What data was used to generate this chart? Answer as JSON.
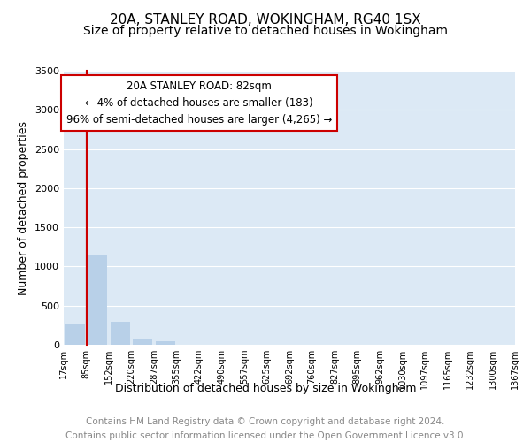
{
  "title1": "20A, STANLEY ROAD, WOKINGHAM, RG40 1SX",
  "title2": "Size of property relative to detached houses in Wokingham",
  "xlabel": "Distribution of detached houses by size in Wokingham",
  "ylabel": "Number of detached properties",
  "footnote1": "Contains HM Land Registry data © Crown copyright and database right 2024.",
  "footnote2": "Contains public sector information licensed under the Open Government Licence v3.0.",
  "annotation_title": "20A STANLEY ROAD: 82sqm",
  "annotation_line1": "← 4% of detached houses are smaller (183)",
  "annotation_line2": "96% of semi-detached houses are larger (4,265) →",
  "bar_values": [
    270,
    1150,
    290,
    80,
    50,
    0,
    0,
    0,
    0,
    0,
    0,
    0,
    0,
    0,
    0,
    0,
    0,
    0,
    0,
    0
  ],
  "categories": [
    "17sqm",
    "85sqm",
    "152sqm",
    "220sqm",
    "287sqm",
    "355sqm",
    "422sqm",
    "490sqm",
    "557sqm",
    "625sqm",
    "692sqm",
    "760sqm",
    "827sqm",
    "895sqm",
    "962sqm",
    "1030sqm",
    "1097sqm",
    "1165sqm",
    "1232sqm",
    "1300sqm",
    "1367sqm"
  ],
  "bar_color_normal": "#b8d0e8",
  "bar_color_highlight": "#cc0000",
  "red_line_x": 0.5,
  "ylim": [
    0,
    3500
  ],
  "yticks": [
    0,
    500,
    1000,
    1500,
    2000,
    2500,
    3000,
    3500
  ],
  "background_color": "#ffffff",
  "plot_bg_color": "#dce9f5",
  "grid_color": "#ffffff",
  "annotation_box_color": "#ffffff",
  "annotation_box_edge": "#cc0000",
  "title_fontsize": 11,
  "subtitle_fontsize": 10,
  "label_fontsize": 9,
  "tick_fontsize": 8,
  "footnote_fontsize": 7.5,
  "annotation_fontsize": 8.5
}
